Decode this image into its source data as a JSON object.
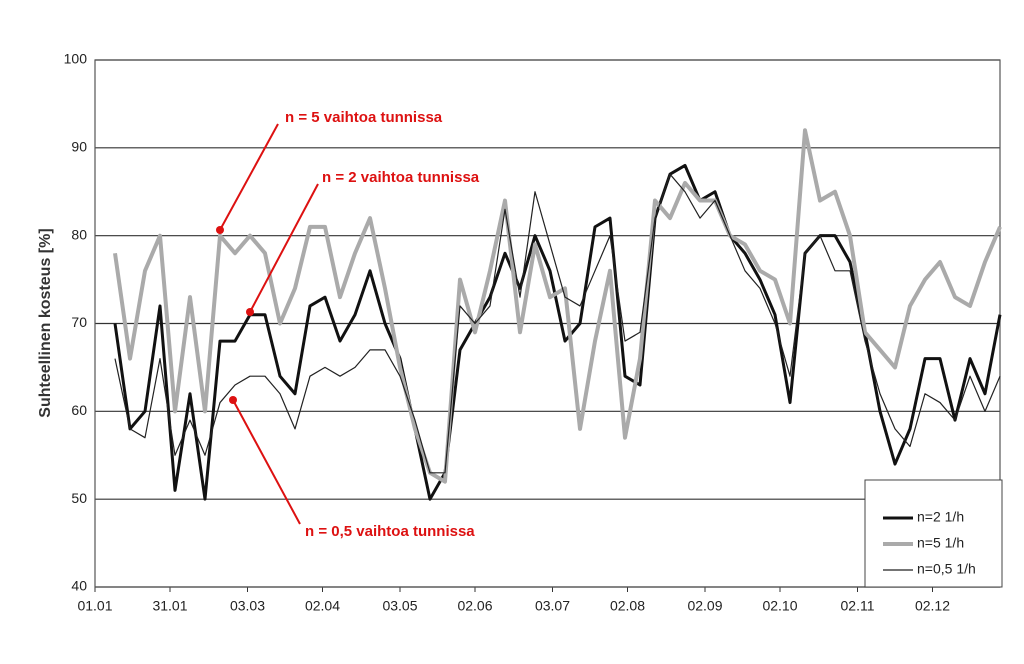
{
  "chart_data": {
    "type": "line",
    "ylabel": "Suhteellinen kosteus [%]",
    "x": [
      8,
      14,
      20,
      26,
      32,
      38,
      44,
      50,
      56,
      62,
      68,
      74,
      80,
      86,
      92,
      98,
      104,
      110,
      116,
      122,
      128,
      134,
      140,
      146,
      152,
      158,
      164,
      170,
      176,
      182,
      188,
      194,
      200,
      206,
      212,
      218,
      224,
      230,
      236,
      242,
      248,
      254,
      260,
      266,
      272,
      278,
      284,
      290,
      296,
      302,
      308,
      314,
      320,
      326,
      332,
      338,
      344,
      350,
      356,
      362
    ],
    "series": [
      {
        "name": "n=2 1/h",
        "color": "#111111",
        "width": 3,
        "values": [
          70,
          58,
          60,
          72,
          51,
          62,
          50,
          68,
          68,
          71,
          71,
          64,
          62,
          72,
          73,
          68,
          71,
          76,
          70,
          66,
          58,
          50,
          53,
          67,
          70,
          73,
          78,
          74,
          80,
          76,
          68,
          70,
          81,
          82,
          64,
          63,
          82,
          87,
          88,
          84,
          85,
          80,
          78,
          75,
          71,
          61,
          78,
          80,
          80,
          77,
          69,
          60,
          54,
          58,
          66,
          66,
          59,
          66,
          62,
          71
        ]
      },
      {
        "name": "n=5 1/h",
        "color": "#aaaaaa",
        "width": 4,
        "values": [
          78,
          66,
          76,
          80,
          60,
          73,
          60,
          80,
          78,
          80,
          78,
          70,
          74,
          81,
          81,
          73,
          78,
          82,
          74,
          65,
          58,
          53,
          52,
          75,
          69,
          76,
          84,
          69,
          79,
          73,
          74,
          58,
          68,
          76,
          57,
          66,
          84,
          82,
          86,
          84,
          84,
          80,
          79,
          76,
          75,
          70,
          92,
          84,
          85,
          80,
          69,
          67,
          65,
          72,
          75,
          77,
          73,
          72,
          77,
          81
        ]
      },
      {
        "name": "n=0,5 1/h",
        "color": "#222222",
        "width": 1.2,
        "values": [
          66,
          58,
          57,
          66,
          55,
          59,
          55,
          61,
          63,
          64,
          64,
          62,
          58,
          64,
          65,
          64,
          65,
          67,
          67,
          64,
          59,
          53,
          53,
          72,
          70,
          72,
          83,
          73,
          85,
          79,
          73,
          72,
          76,
          80,
          68,
          69,
          82,
          87,
          85,
          82,
          84,
          80,
          76,
          74,
          70,
          64,
          78,
          80,
          76,
          76,
          68,
          62,
          58,
          56,
          62,
          61,
          59,
          64,
          60,
          64
        ]
      }
    ],
    "xlim": [
      0,
      362
    ],
    "xticks": [
      {
        "value": 0,
        "label": "01.01"
      },
      {
        "value": 30,
        "label": "31.01"
      },
      {
        "value": 61,
        "label": "03.03"
      },
      {
        "value": 91,
        "label": "02.04"
      },
      {
        "value": 122,
        "label": "03.05"
      },
      {
        "value": 152,
        "label": "02.06"
      },
      {
        "value": 183,
        "label": "03.07"
      },
      {
        "value": 213,
        "label": "02.08"
      },
      {
        "value": 244,
        "label": "02.09"
      },
      {
        "value": 274,
        "label": "02.10"
      },
      {
        "value": 305,
        "label": "02.11"
      },
      {
        "value": 335,
        "label": "02.12"
      }
    ],
    "ylim": [
      40,
      100
    ],
    "yticks": [
      40,
      50,
      60,
      70,
      80,
      90,
      100
    ],
    "grid": true,
    "legend": "lower right",
    "annotations": [
      {
        "text": "n = 5 vaihtoa tunnissa",
        "color": "#dd1111"
      },
      {
        "text": "n = 2 vaihtoa tunnissa",
        "color": "#dd1111"
      },
      {
        "text": "n = 0,5 vaihtoa tunnissa",
        "color": "#dd1111"
      }
    ]
  }
}
